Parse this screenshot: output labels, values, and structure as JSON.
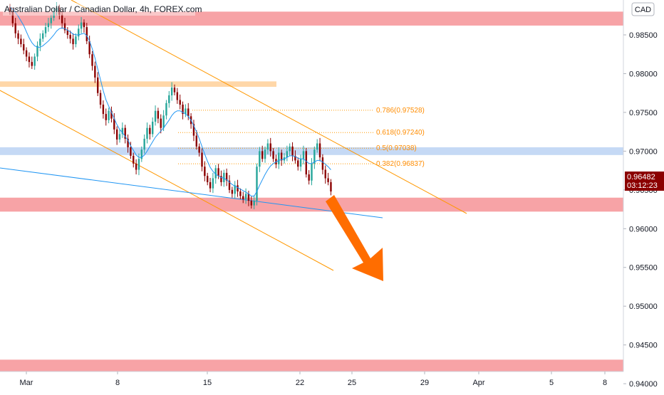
{
  "chart_data": {
    "type": "candlestick",
    "title": "Australian Dollar / Canadian Dollar, 4h, FOREX.com",
    "currency": "CAD",
    "y_axis": {
      "ticks": [
        "0.98500",
        "0.98000",
        "0.97500",
        "0.97000",
        "0.96500",
        "0.96000",
        "0.95500",
        "0.95000",
        "0.94500",
        "0.94000"
      ],
      "ylim": [
        0.939,
        0.9895
      ]
    },
    "x_axis": {
      "ticks": [
        "Mar",
        "8",
        "15",
        "22",
        "25",
        "29",
        "Apr",
        "5",
        "8"
      ]
    },
    "last_price": {
      "value": "0.96482",
      "countdown": "03:12:23"
    },
    "zones": [
      {
        "low": 0.9862,
        "high": 0.988,
        "color": "#f7a3a6"
      },
      {
        "low": 0.9783,
        "high": 0.979,
        "color": "#ffd7a8"
      },
      {
        "low": 0.9695,
        "high": 0.9705,
        "color": "#c5d9f5"
      },
      {
        "low": 0.9622,
        "high": 0.964,
        "color": "#f7a3a6"
      },
      {
        "low": 0.9413,
        "high": 0.9431,
        "color": "#f7a3a6"
      }
    ],
    "fib_levels": [
      {
        "label": "0.786(0.97528)",
        "value": 0.97528
      },
      {
        "label": "0.618(0.97240)",
        "value": 0.9724
      },
      {
        "label": "0.5(0.97038)",
        "value": 0.97038
      },
      {
        "label": "0.382(0.96837)",
        "value": 0.96837
      }
    ],
    "candles_close": [
      0.988,
      0.9865,
      0.9852,
      0.9845,
      0.9838,
      0.983,
      0.9822,
      0.9815,
      0.981,
      0.9822,
      0.9836,
      0.9845,
      0.9852,
      0.986,
      0.9865,
      0.9872,
      0.988,
      0.9885,
      0.9876,
      0.9865,
      0.9856,
      0.985,
      0.9845,
      0.9838,
      0.9848,
      0.9858,
      0.9866,
      0.986,
      0.9842,
      0.9825,
      0.981,
      0.9795,
      0.9775,
      0.976,
      0.9748,
      0.974,
      0.9752,
      0.9742,
      0.9728,
      0.9715,
      0.9722,
      0.973,
      0.9716,
      0.9705,
      0.9694,
      0.9684,
      0.9676,
      0.969,
      0.9702,
      0.9716,
      0.973,
      0.9722,
      0.9738,
      0.9752,
      0.9742,
      0.973,
      0.9746,
      0.9762,
      0.9772,
      0.9782,
      0.9776,
      0.9766,
      0.976,
      0.9748,
      0.9755,
      0.9745,
      0.9735,
      0.972,
      0.9706,
      0.9698,
      0.968,
      0.9668,
      0.966,
      0.9652,
      0.9665,
      0.9678,
      0.9668,
      0.966,
      0.9672,
      0.9662,
      0.965,
      0.9645,
      0.9656,
      0.9648,
      0.9642,
      0.9638,
      0.9645,
      0.9636,
      0.963,
      0.9636,
      0.968,
      0.97,
      0.969,
      0.9702,
      0.971,
      0.97,
      0.969,
      0.9683,
      0.9698,
      0.9688,
      0.9692,
      0.97,
      0.9706,
      0.9694,
      0.9688,
      0.968,
      0.969,
      0.97,
      0.967,
      0.9662,
      0.9684,
      0.9702,
      0.971,
      0.9692,
      0.9676,
      0.9665,
      0.966,
      0.9648
    ],
    "ma_series": [
      0.9886,
      0.9883,
      0.9879,
      0.9874,
      0.9868,
      0.9862,
      0.9854,
      0.9846,
      0.984,
      0.9836,
      0.9834,
      0.9834,
      0.9836,
      0.9839,
      0.9842,
      0.9846,
      0.985,
      0.9855,
      0.9858,
      0.9859,
      0.9858,
      0.9856,
      0.9854,
      0.9851,
      0.985,
      0.985,
      0.9851,
      0.9852,
      0.9849,
      0.9842,
      0.9832,
      0.982,
      0.9806,
      0.9792,
      0.9778,
      0.9766,
      0.9758,
      0.975,
      0.9742,
      0.9734,
      0.9728,
      0.9724,
      0.9719,
      0.9714,
      0.9707,
      0.9701,
      0.9695,
      0.9692,
      0.9692,
      0.9695,
      0.97,
      0.9706,
      0.9712,
      0.9718,
      0.9722,
      0.9726,
      0.973,
      0.9735,
      0.974,
      0.9746,
      0.975,
      0.9752,
      0.9752,
      0.975,
      0.9748,
      0.9745,
      0.974,
      0.9733,
      0.9725,
      0.9716,
      0.9706,
      0.9696,
      0.9687,
      0.9679,
      0.9674,
      0.967,
      0.9668,
      0.9666,
      0.9665,
      0.9663,
      0.966,
      0.9657,
      0.9655,
      0.9653,
      0.9651,
      0.9649,
      0.9647,
      0.9645,
      0.9642,
      0.9642,
      0.9648,
      0.9656,
      0.9663,
      0.967,
      0.9676,
      0.9681,
      0.9684,
      0.9686,
      0.9688,
      0.9689,
      0.969,
      0.9692,
      0.9694,
      0.9694,
      0.9693,
      0.9691,
      0.969,
      0.969,
      0.9687,
      0.9684,
      0.9684,
      0.9686,
      0.9688,
      0.9688,
      0.9686,
      0.9683,
      0.968,
      0.9676
    ],
    "colors": {
      "bull": "#26a69a",
      "bear": "#8b0000",
      "channel": "#ff9800",
      "ma": "#2196f3",
      "trend": "#2196f3",
      "arrow": "#ff6d00"
    }
  }
}
